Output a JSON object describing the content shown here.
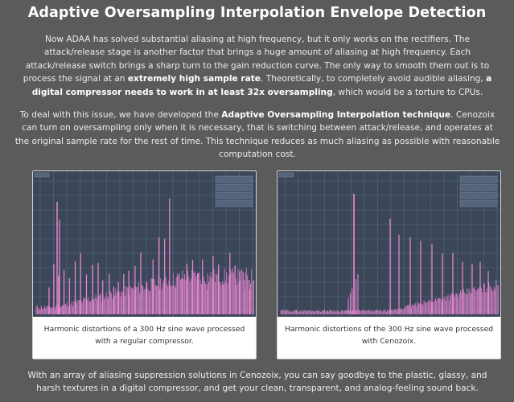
{
  "title": "Adaptive Oversampling Interpolation Envelope Detection",
  "paragraph1": {
    "t1": "Now ADAA has solved substantial aliasing at high frequency, but it only works on the rectifiers. The attack/release stage is another factor that brings a huge amount of aliasing at high frequency. Each attack/release switch brings a sharp turn to the gain reduction curve. The only way to smooth them out is to process the signal at an ",
    "b1": "extremely high sample rate",
    "t2": ". Theoretically, to completely avoid audible aliasing, ",
    "b2": "a digital compressor needs to work in at least 32x oversampling",
    "t3": ", which would be a torture to CPUs."
  },
  "paragraph2": {
    "t1": "To deal with this issue, we have developed the ",
    "b1": "Adaptive Oversampling Interpolation technique",
    "t2": ". Cenozoix can turn on oversampling only when it is necessary, that is switching between attack/release, and operates at the original sample rate for the rest of time. This technique reduces as much aliasing as possible with reasonable computation cost."
  },
  "figures": [
    {
      "caption": "Harmonic distortions of a 300 Hz sine wave processed with a regular compressor.",
      "spectrum_type": "regular-compressor"
    },
    {
      "caption": "Harmonic distortions of the 300 Hz sine wave processed with Cenozoix.",
      "spectrum_type": "cenozoix"
    }
  ],
  "paragraph3": "With an array of aliasing suppression solutions in Cenozoix, you can say goodbye to the plastic, glassy, and harsh textures in a digital compressor, and get your clean, transparent, and analog-feeling sound back.",
  "colors": {
    "page_bg": "#5b5b5b",
    "plot_bg": "#3b4658",
    "grid": "#5a6a80",
    "spectrum": "#f08ad6"
  }
}
